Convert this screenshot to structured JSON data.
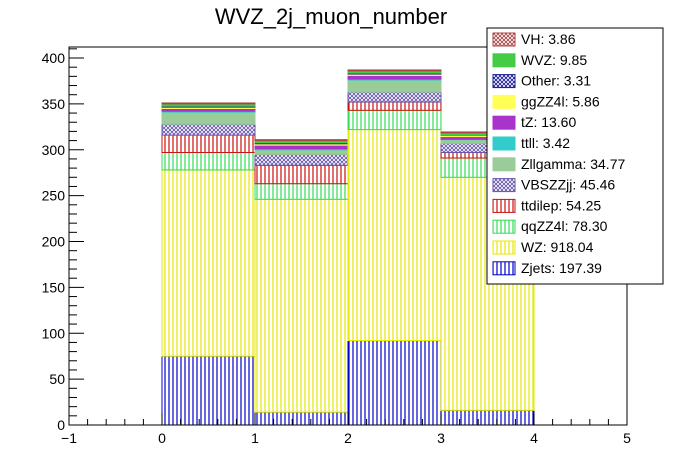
{
  "chart_data": {
    "type": "bar",
    "stacked": true,
    "title": "WVZ_2j_muon_number",
    "xlabel": "",
    "ylabel": "",
    "xlim": [
      -1,
      5
    ],
    "ylim": [
      0,
      412
    ],
    "x_ticks": [
      -1,
      0,
      1,
      2,
      3,
      4,
      5
    ],
    "y_ticks": [
      0,
      50,
      100,
      150,
      200,
      250,
      300,
      350,
      400
    ],
    "bins": [
      [
        0,
        1
      ],
      [
        1,
        2
      ],
      [
        2,
        3
      ],
      [
        3,
        4
      ]
    ],
    "legend_position": "top-right",
    "series": [
      {
        "name": "Zjets",
        "legend_label": "Zjets: 197.39",
        "color": "#0000cc",
        "fill": "vlines",
        "values": [
          75,
          14,
          92,
          16
        ]
      },
      {
        "name": "WZ",
        "legend_label": "WZ: 918.04",
        "color": "#e8e800",
        "fill": "vlines",
        "values": [
          203,
          232,
          230,
          254
        ]
      },
      {
        "name": "qqZZ4l",
        "legend_label": "qqZZ4l: 78.30",
        "color": "#33dd55",
        "fill": "vlines",
        "values": [
          19,
          17,
          21,
          21
        ]
      },
      {
        "name": "ttdilep",
        "legend_label": "ttdilep: 54.25",
        "color": "#cc1111",
        "fill": "vlines",
        "values": [
          19,
          20,
          9,
          6
        ]
      },
      {
        "name": "VBSZZjj",
        "legend_label": "VBSZZjj: 45.46",
        "color": "#6655aa",
        "fill": "hatch",
        "values": [
          12,
          12,
          11,
          10
        ]
      },
      {
        "name": "Zllgamma",
        "legend_label": "Zllgamma: 34.77",
        "color": "#99cc99",
        "fill": "solid",
        "values": [
          13,
          5,
          13,
          4
        ]
      },
      {
        "name": "ttll",
        "legend_label": "ttll: 3.42",
        "color": "#33cccc",
        "fill": "solid",
        "values": [
          1,
          1,
          1,
          0.4
        ]
      },
      {
        "name": "tZ",
        "legend_label": "tZ: 13.60",
        "color": "#aa33cc",
        "fill": "solid",
        "values": [
          3,
          4,
          4,
          3
        ]
      },
      {
        "name": "ggZZ4l",
        "legend_label": "ggZZ4l: 5.86",
        "color": "#ffff55",
        "fill": "solid",
        "values": [
          1.5,
          1.5,
          1.5,
          1.4
        ]
      },
      {
        "name": "Other",
        "legend_label": "Other: 3.31",
        "color": "#1a1a99",
        "fill": "hatch",
        "values": [
          1,
          1,
          1,
          0.3
        ]
      },
      {
        "name": "WVZ",
        "legend_label": "WVZ: 9.85",
        "color": "#44cc44",
        "fill": "solid",
        "values": [
          2.5,
          2.5,
          2.5,
          2.4
        ]
      },
      {
        "name": "VH",
        "legend_label": "VH: 3.86",
        "color": "#aa4444",
        "fill": "hatch",
        "values": [
          1,
          1,
          1,
          0.9
        ]
      }
    ]
  }
}
